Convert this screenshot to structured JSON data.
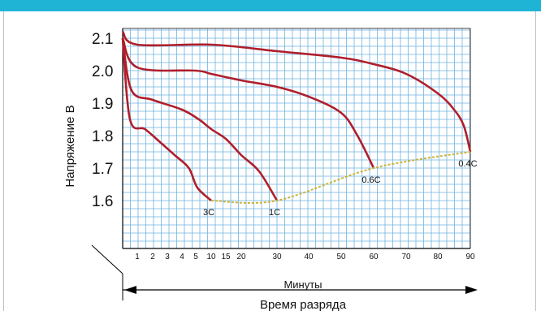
{
  "colors": {
    "header_bar": "#1fb4d6",
    "grid": "#6fb3e0",
    "curve": "#b01e2b",
    "endpoint_line": "#c9b43a",
    "axis": "#000000"
  },
  "chart_data": {
    "type": "line",
    "title": "",
    "xlabel": "Минуты",
    "xlabel_secondary": "Время разряда",
    "ylabel": "Напряжение В",
    "ylim": [
      1.6,
      2.1
    ],
    "y_ticks": [
      "2.1",
      "2.0",
      "1.9",
      "1.8",
      "1.7",
      "1.6"
    ],
    "x_ticks": [
      "1",
      "2",
      "3",
      "4",
      "5",
      "10",
      "15",
      "20",
      "30",
      "40",
      "50",
      "60",
      "70",
      "80",
      "90"
    ],
    "grid": true,
    "series": [
      {
        "name": "3C",
        "points": [
          [
            0,
            2.1
          ],
          [
            0.5,
            1.85
          ],
          [
            1.5,
            1.82
          ],
          [
            2.5,
            1.78
          ],
          [
            3.5,
            1.74
          ],
          [
            4.5,
            1.7
          ],
          [
            5.5,
            1.64
          ],
          [
            10,
            1.6
          ]
        ]
      },
      {
        "name": "1C",
        "points": [
          [
            0,
            2.1
          ],
          [
            0.6,
            1.94
          ],
          [
            2,
            1.91
          ],
          [
            4,
            1.88
          ],
          [
            6,
            1.85
          ],
          [
            10,
            1.82
          ],
          [
            15,
            1.79
          ],
          [
            20,
            1.74
          ],
          [
            25,
            1.69
          ],
          [
            30,
            1.6
          ]
        ]
      },
      {
        "name": "0.6C",
        "points": [
          [
            0,
            2.1
          ],
          [
            1,
            2.01
          ],
          [
            5,
            2.0
          ],
          [
            10,
            1.99
          ],
          [
            20,
            1.97
          ],
          [
            30,
            1.95
          ],
          [
            40,
            1.92
          ],
          [
            50,
            1.87
          ],
          [
            55,
            1.8
          ],
          [
            60,
            1.7
          ]
        ]
      },
      {
        "name": "0.4C",
        "points": [
          [
            0,
            2.12
          ],
          [
            1,
            2.08
          ],
          [
            10,
            2.08
          ],
          [
            30,
            2.06
          ],
          [
            50,
            2.04
          ],
          [
            60,
            2.02
          ],
          [
            70,
            1.99
          ],
          [
            80,
            1.93
          ],
          [
            85,
            1.88
          ],
          [
            88,
            1.83
          ],
          [
            90,
            1.75
          ]
        ]
      }
    ],
    "endpoint_curve": {
      "points": [
        [
          10,
          1.6
        ],
        [
          30,
          1.6
        ],
        [
          60,
          1.7
        ],
        [
          90,
          1.75
        ]
      ]
    }
  }
}
